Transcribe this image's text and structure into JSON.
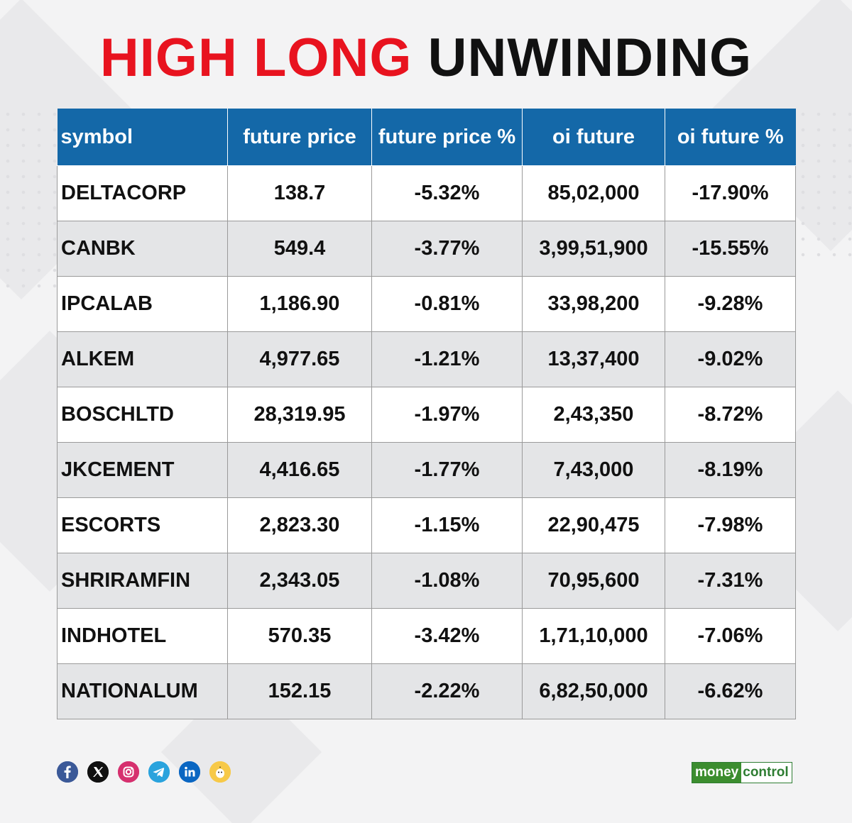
{
  "title": {
    "part1": "HIGH LONG",
    "part2": "UNWINDING"
  },
  "colors": {
    "title_red": "#e8131f",
    "header_blue": "#1468a8",
    "brand_green": "#3c8d2f"
  },
  "table": {
    "headers": [
      "symbol",
      "future price",
      "future price %",
      "oi future",
      "oi future %"
    ],
    "rows": [
      [
        "DELTACORP",
        "138.7",
        "-5.32%",
        "85,02,000",
        "-17.90%"
      ],
      [
        "CANBK",
        "549.4",
        "-3.77%",
        "3,99,51,900",
        "-15.55%"
      ],
      [
        "IPCALAB",
        "1,186.90",
        "-0.81%",
        "33,98,200",
        "-9.28%"
      ],
      [
        "ALKEM",
        "4,977.65",
        "-1.21%",
        "13,37,400",
        "-9.02%"
      ],
      [
        "BOSCHLTD",
        "28,319.95",
        "-1.97%",
        "2,43,350",
        "-8.72%"
      ],
      [
        "JKCEMENT",
        "4,416.65",
        "-1.77%",
        "7,43,000",
        "-8.19%"
      ],
      [
        "ESCORTS",
        "2,823.30",
        "-1.15%",
        "22,90,475",
        "-7.98%"
      ],
      [
        "SHRIRAMFIN",
        "2,343.05",
        "-1.08%",
        "70,95,600",
        "-7.31%"
      ],
      [
        "INDHOTEL",
        "570.35",
        "-3.42%",
        "1,71,10,000",
        "-7.06%"
      ],
      [
        "NATIONALUM",
        "152.15",
        "-2.22%",
        "6,82,50,000",
        "-6.62%"
      ]
    ]
  },
  "social_icons": [
    "facebook-icon",
    "x-icon",
    "instagram-icon",
    "telegram-icon",
    "linkedin-icon",
    "koo-icon"
  ],
  "logo": {
    "part1": "money",
    "part2": "control"
  }
}
